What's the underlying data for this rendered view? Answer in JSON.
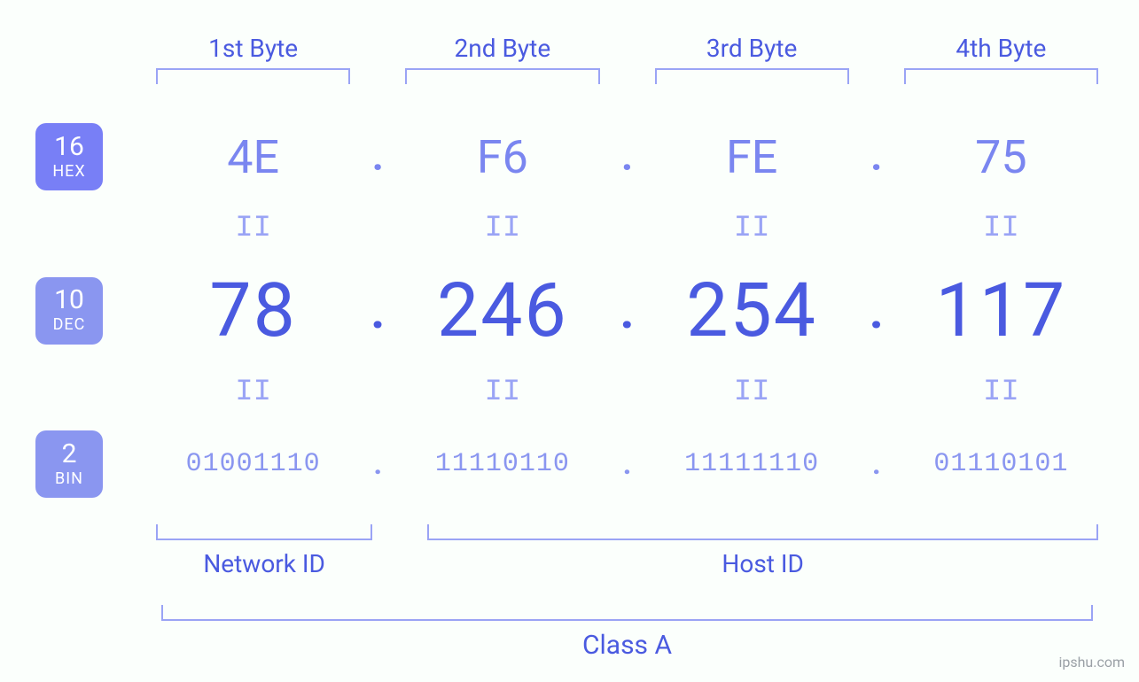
{
  "type": "infographic",
  "background_color": "#fbfffc",
  "colors": {
    "primary": "#4a5ae0",
    "secondary": "#8a96f0",
    "bracket": "#9aa4f5",
    "badge_hex_bg": "#787ff6",
    "badge_dec_bg": "#8a96f0",
    "badge_bin_bg": "#8a96f0"
  },
  "typography": {
    "header_fontsize_pt": 21,
    "hex_fontsize_pt": 39,
    "dec_fontsize_pt": 63,
    "bin_fontsize_pt": 23,
    "badge_num_fontsize_pt": 23,
    "badge_txt_fontsize_pt": 14,
    "label_fontsize_pt": 21
  },
  "headers": {
    "b1": "1st Byte",
    "b2": "2nd Byte",
    "b3": "3rd Byte",
    "b4": "4th Byte"
  },
  "badges": {
    "hex": {
      "num": "16",
      "txt": "HEX"
    },
    "dec": {
      "num": "10",
      "txt": "DEC"
    },
    "bin": {
      "num": "2",
      "txt": "BIN"
    }
  },
  "separator": ".",
  "equals": "II",
  "hex": {
    "b1": "4E",
    "b2": "F6",
    "b3": "FE",
    "b4": "75"
  },
  "dec": {
    "b1": "78",
    "b2": "246",
    "b3": "254",
    "b4": "117"
  },
  "bin": {
    "b1": "01001110",
    "b2": "11110110",
    "b3": "11111110",
    "b4": "01110101"
  },
  "network_id_label": "Network ID",
  "host_id_label": "Host ID",
  "class_label": "Class A",
  "attribution": "ipshu.com"
}
